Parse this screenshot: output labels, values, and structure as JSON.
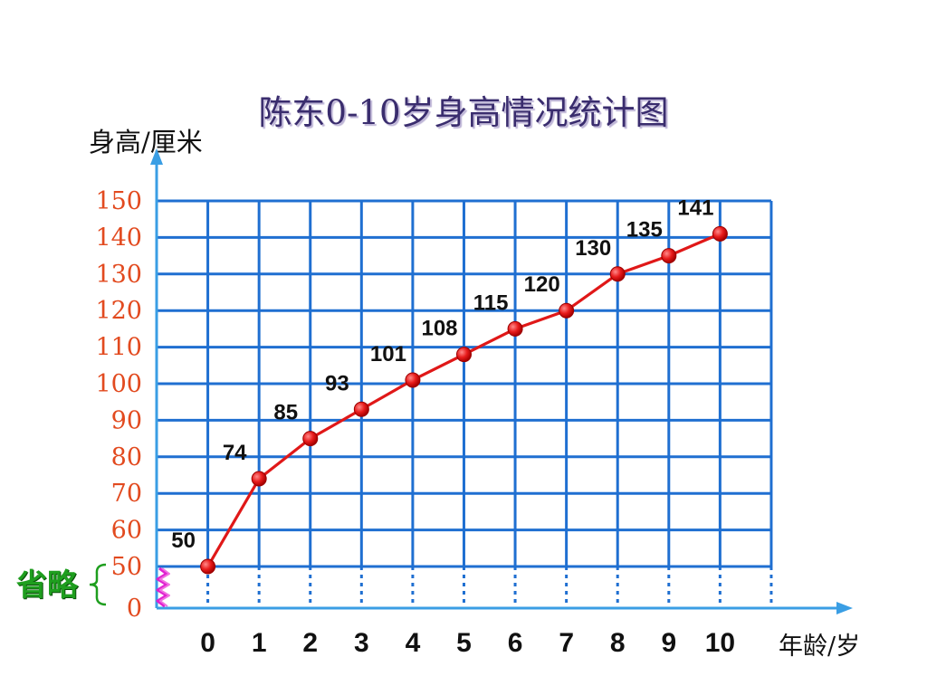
{
  "chart_data": {
    "type": "line",
    "title": "陈东0-10岁身高情况统计图",
    "xlabel": "年龄/岁",
    "ylabel": "身高/厘米",
    "x": [
      0,
      1,
      2,
      3,
      4,
      5,
      6,
      7,
      8,
      9,
      10
    ],
    "series": [
      {
        "values": [
          50,
          74,
          85,
          93,
          101,
          108,
          115,
          120,
          130,
          135,
          141
        ]
      }
    ],
    "yticks": [
      150,
      140,
      130,
      120,
      110,
      100,
      90,
      80,
      70,
      60,
      50,
      0
    ],
    "ylim": [
      0,
      150
    ],
    "axis_break": {
      "from": 0,
      "to": 50,
      "label": "省略"
    },
    "grid": true,
    "data_labels": true,
    "colors": {
      "line": "#e01818",
      "point": "#e81c1c",
      "grid": "#1f6fd1",
      "axis": "#3a9ee4",
      "ytick_label": "#e24a1f",
      "break_mark": "#e020d0",
      "break_label": "#1e9e1e",
      "title": "#3a2d6e"
    }
  }
}
